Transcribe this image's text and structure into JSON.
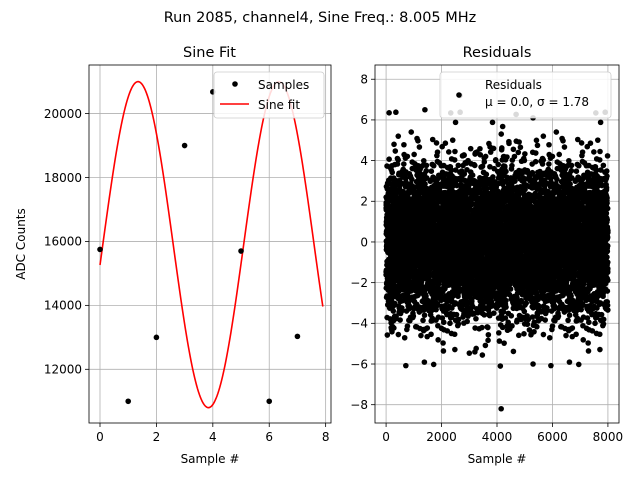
{
  "figure": {
    "suptitle": "Run 2085, channel4, Sine Freq.: 8.005 MHz"
  },
  "chart_data": [
    {
      "type": "scatter",
      "title": "Sine Fit",
      "xlabel": "Sample #",
      "ylabel": "ADC Counts",
      "xlim": [
        -0.39,
        8.19
      ],
      "ylim": [
        10320,
        21520
      ],
      "xticks": [
        0,
        2,
        4,
        6,
        8
      ],
      "yticks": [
        12000,
        14000,
        16000,
        18000,
        20000
      ],
      "grid": true,
      "legend": {
        "placement": "top-right",
        "entries": [
          "Samples",
          "Sine fit"
        ]
      },
      "series": [
        {
          "name": "Samples",
          "style": "points",
          "color": "#000000",
          "x": [
            0,
            1,
            2,
            3,
            4,
            5,
            6,
            7
          ],
          "y": [
            15750,
            11000,
            13000,
            19000,
            20680,
            15700,
            11000,
            13030
          ]
        },
        {
          "name": "Sine fit",
          "style": "line",
          "color": "#ff0000",
          "x_range": [
            0,
            7.9
          ],
          "offset": 15900,
          "amplitude": 5100,
          "period_samples": 4.994,
          "phase_rad": -0.125
        }
      ]
    },
    {
      "type": "scatter",
      "title": "Residuals",
      "xlabel": "Sample #",
      "ylabel": "",
      "xlim": [
        -400,
        8400
      ],
      "ylim": [
        -8.9,
        8.7
      ],
      "xticks": [
        0,
        2000,
        4000,
        6000,
        8000
      ],
      "yticks": [
        -8,
        -6,
        -4,
        -2,
        0,
        2,
        4,
        6,
        8
      ],
      "grid": true,
      "legend": {
        "placement": "top-right",
        "entries": [
          "Residuals",
          "μ = 0.0, σ = 1.78"
        ]
      },
      "series": [
        {
          "name": "Residuals",
          "style": "points",
          "color": "#000000",
          "n_points": 8000,
          "mean": 0.0,
          "std": 1.78,
          "clip": [
            -6.3,
            6.5
          ],
          "outliers": [
            {
              "x": 110,
              "y": 6.35
            },
            {
              "x": 1400,
              "y": 6.5
            },
            {
              "x": 2660,
              "y": 7.2
            },
            {
              "x": 5300,
              "y": 6.1
            },
            {
              "x": 4150,
              "y": -8.2
            },
            {
              "x": 4120,
              "y": -6.1
            },
            {
              "x": 5300,
              "y": -6.0
            }
          ]
        }
      ]
    }
  ]
}
